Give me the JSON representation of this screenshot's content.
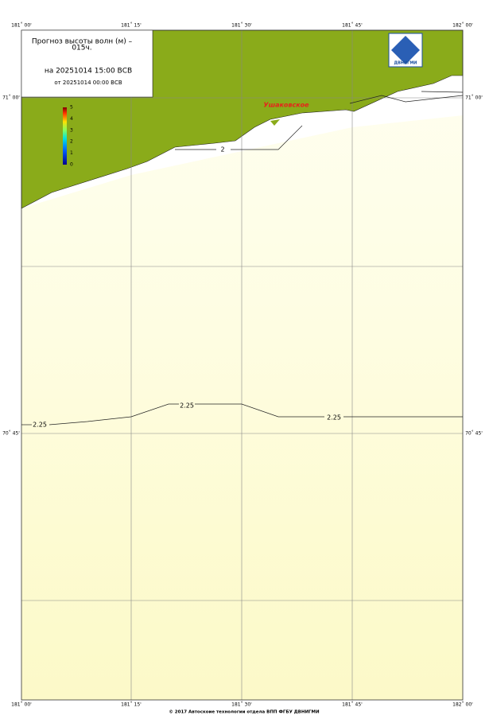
{
  "lon_labels": [
    "181˚ 00'",
    "181˚ 15'",
    "181˚ 30'",
    "181˚ 45'",
    "182˚ 00'"
  ],
  "lat_labels": [
    "71˚ 00'",
    "70˚ 45'"
  ],
  "title": {
    "line1": "Прогноз высоты волн (м) –",
    "line2": "015ч.",
    "valid": "на 20251014 15:00 ВСВ",
    "issued": "от 20251014 00:00 ВСВ"
  },
  "colorbar": {
    "labels": [
      "5",
      "4",
      "3",
      "2",
      "1",
      "0"
    ]
  },
  "place": "Ушаковское",
  "contours": [
    "2",
    "2.25",
    "2.25",
    "2.25"
  ],
  "logo": "ДВНИГМИ",
  "footer": "© 2017 Автоскоие технологии отдела ВПП ФГБУ ДВНИГМИ"
}
